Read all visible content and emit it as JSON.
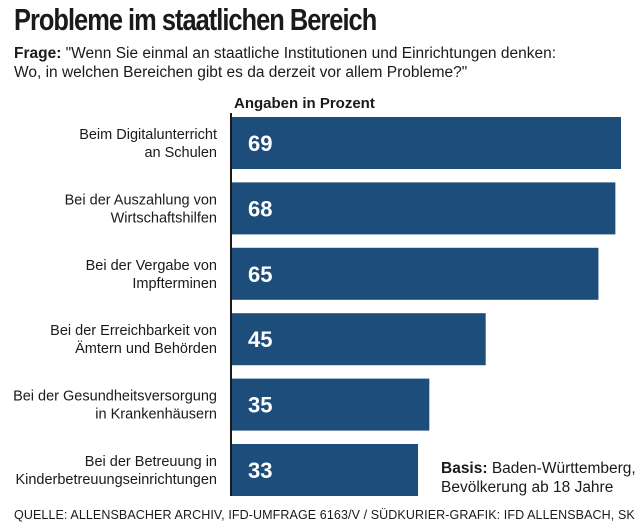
{
  "header": {
    "title": "Probleme im staatlichen Bereich",
    "question_label": "Frage:",
    "question_line1": " \"Wenn Sie einmal an staatliche Institutionen und Einrichtungen denken:",
    "question_line2": "Wo, in welchen Bereichen gibt es da derzeit vor allem Probleme?\""
  },
  "chart_data": {
    "type": "bar",
    "orientation": "horizontal",
    "title": "Probleme im staatlichen Bereich",
    "unit_label": "Angaben in Prozent",
    "categories": [
      [
        "Beim Digitalunterricht",
        "an Schulen"
      ],
      [
        "Bei der Auszahlung von",
        "Wirtschaftshilfen"
      ],
      [
        "Bei der Vergabe von",
        "Impfterminen"
      ],
      [
        "Bei der Erreichbarkeit von",
        "Ämtern und Behörden"
      ],
      [
        "Bei der Gesundheitsversorgung",
        "in Krankenhäusern"
      ],
      [
        "Bei der Betreuung in",
        "Kinderbetreuungseinrichtungen"
      ]
    ],
    "values": [
      69,
      68,
      65,
      45,
      35,
      33
    ],
    "xlim": [
      0,
      69
    ],
    "bar_color": "#1d4d7a",
    "grid": false
  },
  "footer": {
    "basis_label": "Basis:",
    "basis_line1": " Baden-Württemberg,",
    "basis_line2": "Bevölkerung ab 18 Jahre",
    "source": "QUELLE: ALLENSBACHER ARCHIV, IFD-UMFRAGE 6163/V / SÜDKURIER-GRAFIK: IFD ALLENSBACH, SK"
  }
}
